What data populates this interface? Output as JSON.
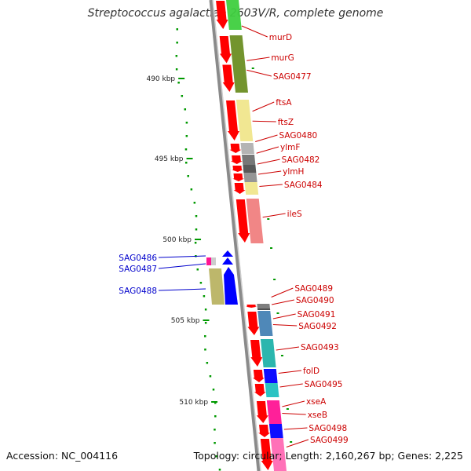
{
  "title": "Streptococcus agalactiae 2603V/R, complete genome",
  "footer": {
    "accession": "Accession: NC_004116",
    "topology": "Topology: circular; Length: 2,160,267 bp; Genes: 2,225"
  },
  "scale": {
    "ticks": [
      "490 kbp",
      "495 kbp",
      "500 kbp",
      "505 kbp",
      "510 kbp"
    ]
  },
  "colors": {
    "forward_label": "#cc0000",
    "reverse_label": "#0000cc",
    "forward_arrow": "#ff0000",
    "reverse_arrow": "#0000ff",
    "dots": "#009900"
  },
  "genes_forward": [
    {
      "name": "murD"
    },
    {
      "name": "murG"
    },
    {
      "name": "SAG0477"
    },
    {
      "name": "ftsA"
    },
    {
      "name": "ftsZ"
    },
    {
      "name": "SAG0480"
    },
    {
      "name": "ylmF"
    },
    {
      "name": "SAG0482"
    },
    {
      "name": "ylmH"
    },
    {
      "name": "SAG0484"
    },
    {
      "name": "ileS"
    },
    {
      "name": "SAG0489"
    },
    {
      "name": "SAG0490"
    },
    {
      "name": "SAG0491"
    },
    {
      "name": "SAG0492"
    },
    {
      "name": "SAG0493"
    },
    {
      "name": "folD"
    },
    {
      "name": "SAG0495"
    },
    {
      "name": "xseA"
    },
    {
      "name": "xseB"
    },
    {
      "name": "SAG0498"
    },
    {
      "name": "SAG0499"
    }
  ],
  "genes_reverse": [
    {
      "name": "SAG0486"
    },
    {
      "name": "SAG0487"
    },
    {
      "name": "SAG0488"
    }
  ]
}
